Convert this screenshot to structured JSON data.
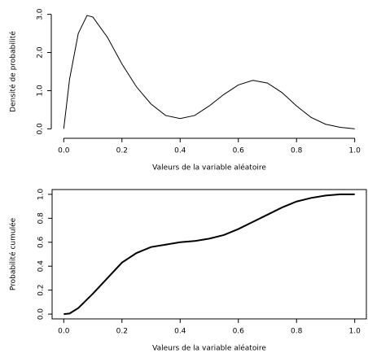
{
  "chart_data": [
    {
      "type": "line",
      "xlabel": "Valeurs de la variable aléatoire",
      "ylabel": "Densité de probabilité",
      "color": "#000000",
      "box": false,
      "x": [
        0,
        0.02,
        0.05,
        0.08,
        0.1,
        0.15,
        0.2,
        0.25,
        0.3,
        0.35,
        0.4,
        0.45,
        0.5,
        0.55,
        0.6,
        0.65,
        0.7,
        0.75,
        0.8,
        0.85,
        0.9,
        0.95,
        1.0
      ],
      "values": [
        0,
        1.3,
        2.5,
        2.97,
        2.93,
        2.4,
        1.7,
        1.1,
        0.65,
        0.35,
        0.27,
        0.35,
        0.6,
        0.9,
        1.15,
        1.27,
        1.2,
        0.95,
        0.6,
        0.3,
        0.12,
        0.04,
        0
      ],
      "xlim": [
        -0.04,
        1.04
      ],
      "ylim": [
        -0.12,
        3.12
      ],
      "xticks": [
        {
          "value": 0,
          "label": "0.0"
        },
        0.2,
        0.4,
        0.6,
        0.8,
        {
          "value": 1,
          "label": "1.0"
        }
      ],
      "yticks": [
        {
          "value": 0,
          "label": "0.0"
        },
        {
          "value": 1,
          "label": "1.0"
        },
        {
          "value": 2,
          "label": "2.0"
        },
        {
          "value": 3,
          "label": "3.0"
        }
      ]
    },
    {
      "type": "line",
      "xlabel": "Valeurs de la variable aléatoire",
      "ylabel": "Probabilité cumulée",
      "color": "#000000",
      "box": true,
      "x": [
        0,
        0.02,
        0.05,
        0.1,
        0.15,
        0.2,
        0.25,
        0.3,
        0.35,
        0.4,
        0.45,
        0.5,
        0.55,
        0.6,
        0.65,
        0.7,
        0.75,
        0.8,
        0.85,
        0.9,
        0.95,
        1.0
      ],
      "values": [
        0,
        0.005,
        0.05,
        0.17,
        0.3,
        0.43,
        0.51,
        0.56,
        0.58,
        0.6,
        0.61,
        0.63,
        0.66,
        0.71,
        0.77,
        0.83,
        0.89,
        0.94,
        0.97,
        0.99,
        1.0,
        1.0
      ],
      "xlim": [
        -0.04,
        1.04
      ],
      "ylim": [
        -0.04,
        1.04
      ],
      "xticks": [
        {
          "value": 0,
          "label": "0.0"
        },
        0.2,
        0.4,
        0.6,
        0.8,
        {
          "value": 1,
          "label": "1.0"
        }
      ],
      "yticks": [
        {
          "value": 0,
          "label": "0.0"
        },
        0.2,
        0.4,
        0.6,
        0.8,
        {
          "value": 1,
          "label": "1.0"
        }
      ]
    }
  ]
}
